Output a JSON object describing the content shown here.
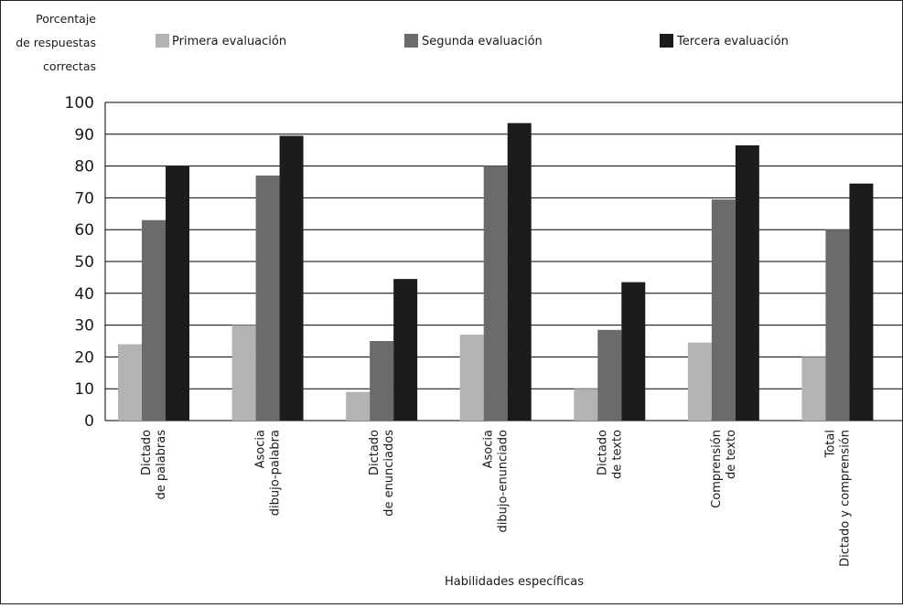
{
  "chart_data": {
    "type": "bar",
    "ylabel_lines": [
      "Porcentaje",
      "de respuestas",
      "correctas"
    ],
    "xlabel": "Habilidades específicas",
    "ylim": [
      0,
      100
    ],
    "yticks": [
      0,
      10,
      20,
      30,
      40,
      50,
      60,
      70,
      80,
      90,
      100
    ],
    "grid": true,
    "legend_position": "top",
    "categories": [
      [
        "Dictado",
        "de palabras"
      ],
      [
        "Asocia",
        "dibujo-palabra"
      ],
      [
        "Dictado",
        "de enunciados"
      ],
      [
        "Asocia",
        "dibujo-enunciado"
      ],
      [
        "Dictado",
        "de texto"
      ],
      [
        "Comprensión",
        "de texto"
      ],
      [
        "Total",
        "Dictado y comprensión"
      ]
    ],
    "series": [
      {
        "name": "Primera evaluación",
        "color": "#b3b3b3",
        "values": [
          24,
          30,
          9,
          27,
          10,
          24.5,
          20
        ]
      },
      {
        "name": "Segunda evaluación",
        "color": "#6b6b6b",
        "values": [
          63,
          77,
          25,
          80,
          28.5,
          69.5,
          60
        ]
      },
      {
        "name": "Tercera evaluación",
        "color": "#1c1c1c",
        "values": [
          80,
          89.5,
          44.5,
          93.5,
          43.5,
          86.5,
          74.5
        ]
      }
    ]
  }
}
